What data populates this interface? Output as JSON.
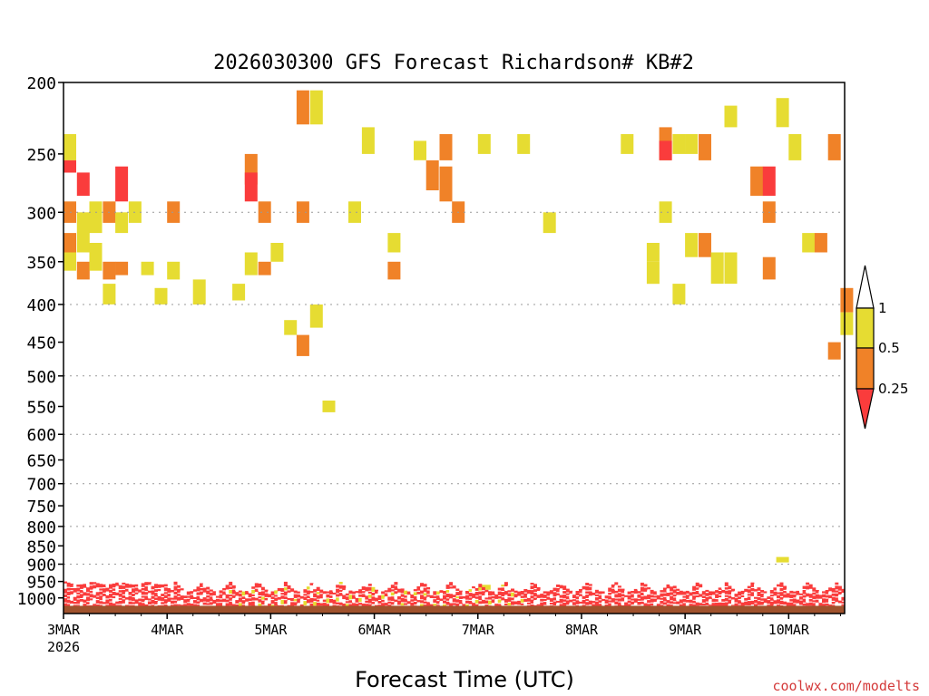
{
  "chart_data": {
    "type": "heatmap",
    "title": "2026030300 GFS Forecast Richardson# KB#2",
    "xlabel": "Forecast Time (UTC)",
    "ylabel": "",
    "credit": "coolwx.com/modelts",
    "x_ticks": [
      {
        "label": "3MAR",
        "sub": "2026",
        "day": 0
      },
      {
        "label": "4MAR",
        "day": 1
      },
      {
        "label": "5MAR",
        "day": 2
      },
      {
        "label": "6MAR",
        "day": 3
      },
      {
        "label": "7MAR",
        "day": 4
      },
      {
        "label": "8MAR",
        "day": 5
      },
      {
        "label": "9MAR",
        "day": 6
      },
      {
        "label": "10MAR",
        "day": 7
      }
    ],
    "xlim_days": [
      0,
      7.54
    ],
    "y_ticks": [
      200,
      250,
      300,
      350,
      400,
      450,
      500,
      550,
      600,
      650,
      700,
      750,
      800,
      850,
      900,
      950,
      1000
    ],
    "y_gridlines": [
      300,
      400,
      500,
      600,
      700,
      800,
      900
    ],
    "ylim": [
      200,
      1050
    ],
    "y_scale": "log",
    "grid": true,
    "legend_placement": "right",
    "color_scale": [
      {
        "label": "1",
        "value": 1,
        "color": "#ffffff",
        "range": "above 1"
      },
      {
        "label": "0.5",
        "value": 0.5,
        "color": "#e6dc32",
        "range": "0.5 - 1"
      },
      {
        "label": "0.25",
        "value": 0.25,
        "color": "#f08228",
        "range": "0.25 - 0.5"
      },
      {
        "label": "",
        "value": 0,
        "color": "#fa3c3c",
        "range": "below 0.25"
      }
    ],
    "ground_color": "#a0522d",
    "surface_p": 1030,
    "time_step_days": 0.125,
    "cells": [
      {
        "d": 0.0,
        "p1": 235,
        "p2": 255,
        "c": "y"
      },
      {
        "d": 0.0,
        "p1": 255,
        "p2": 265,
        "c": "r"
      },
      {
        "d": 0.0,
        "p1": 320,
        "p2": 340,
        "c": "o"
      },
      {
        "d": 0.0,
        "p1": 340,
        "p2": 360,
        "c": "y"
      },
      {
        "d": 0.0,
        "p1": 290,
        "p2": 310,
        "c": "o"
      },
      {
        "d": 0.13,
        "p1": 265,
        "p2": 285,
        "c": "r"
      },
      {
        "d": 0.13,
        "p1": 300,
        "p2": 340,
        "c": "y"
      },
      {
        "d": 0.13,
        "p1": 350,
        "p2": 370,
        "c": "o"
      },
      {
        "d": 0.25,
        "p1": 290,
        "p2": 320,
        "c": "y"
      },
      {
        "d": 0.25,
        "p1": 330,
        "p2": 360,
        "c": "y"
      },
      {
        "d": 0.38,
        "p1": 290,
        "p2": 310,
        "c": "o"
      },
      {
        "d": 0.38,
        "p1": 350,
        "p2": 370,
        "c": "o"
      },
      {
        "d": 0.38,
        "p1": 375,
        "p2": 400,
        "c": "y"
      },
      {
        "d": 0.5,
        "p1": 260,
        "p2": 290,
        "c": "r"
      },
      {
        "d": 0.5,
        "p1": 300,
        "p2": 320,
        "c": "y"
      },
      {
        "d": 0.5,
        "p1": 350,
        "p2": 365,
        "c": "o"
      },
      {
        "d": 0.63,
        "p1": 290,
        "p2": 310,
        "c": "y"
      },
      {
        "d": 0.75,
        "p1": 350,
        "p2": 365,
        "c": "y"
      },
      {
        "d": 0.88,
        "p1": 380,
        "p2": 400,
        "c": "y"
      },
      {
        "d": 1.0,
        "p1": 290,
        "p2": 310,
        "c": "o"
      },
      {
        "d": 1.0,
        "p1": 350,
        "p2": 370,
        "c": "y"
      },
      {
        "d": 1.25,
        "p1": 370,
        "p2": 400,
        "c": "y"
      },
      {
        "d": 1.63,
        "p1": 375,
        "p2": 395,
        "c": "y"
      },
      {
        "d": 1.75,
        "p1": 250,
        "p2": 275,
        "c": "o"
      },
      {
        "d": 1.75,
        "p1": 265,
        "p2": 290,
        "c": "r"
      },
      {
        "d": 1.75,
        "p1": 340,
        "p2": 365,
        "c": "y"
      },
      {
        "d": 1.88,
        "p1": 290,
        "p2": 310,
        "c": "o"
      },
      {
        "d": 1.88,
        "p1": 350,
        "p2": 365,
        "c": "o"
      },
      {
        "d": 2.0,
        "p1": 330,
        "p2": 350,
        "c": "y"
      },
      {
        "d": 2.13,
        "p1": 420,
        "p2": 440,
        "c": "y"
      },
      {
        "d": 2.25,
        "p1": 205,
        "p2": 228,
        "c": "o"
      },
      {
        "d": 2.25,
        "p1": 290,
        "p2": 310,
        "c": "o"
      },
      {
        "d": 2.25,
        "p1": 440,
        "p2": 470,
        "c": "o"
      },
      {
        "d": 2.38,
        "p1": 205,
        "p2": 228,
        "c": "y"
      },
      {
        "d": 2.38,
        "p1": 400,
        "p2": 430,
        "c": "y"
      },
      {
        "d": 2.5,
        "p1": 540,
        "p2": 560,
        "c": "y"
      },
      {
        "d": 2.75,
        "p1": 290,
        "p2": 310,
        "c": "y"
      },
      {
        "d": 2.88,
        "p1": 230,
        "p2": 250,
        "c": "y"
      },
      {
        "d": 3.13,
        "p1": 320,
        "p2": 340,
        "c": "y"
      },
      {
        "d": 3.13,
        "p1": 350,
        "p2": 370,
        "c": "o"
      },
      {
        "d": 3.38,
        "p1": 240,
        "p2": 255,
        "c": "y"
      },
      {
        "d": 3.5,
        "p1": 255,
        "p2": 280,
        "c": "o"
      },
      {
        "d": 3.63,
        "p1": 235,
        "p2": 255,
        "c": "o"
      },
      {
        "d": 3.63,
        "p1": 260,
        "p2": 290,
        "c": "o"
      },
      {
        "d": 3.75,
        "p1": 290,
        "p2": 310,
        "c": "o"
      },
      {
        "d": 4.0,
        "p1": 235,
        "p2": 250,
        "c": "y"
      },
      {
        "d": 4.38,
        "p1": 235,
        "p2": 250,
        "c": "y"
      },
      {
        "d": 4.0,
        "p1": 960,
        "p2": 975,
        "c": "y"
      },
      {
        "d": 4.63,
        "p1": 300,
        "p2": 320,
        "c": "y"
      },
      {
        "d": 5.38,
        "p1": 235,
        "p2": 250,
        "c": "y"
      },
      {
        "d": 5.63,
        "p1": 330,
        "p2": 350,
        "c": "y"
      },
      {
        "d": 5.63,
        "p1": 350,
        "p2": 375,
        "c": "y"
      },
      {
        "d": 5.75,
        "p1": 230,
        "p2": 255,
        "c": "o"
      },
      {
        "d": 5.75,
        "p1": 240,
        "p2": 255,
        "c": "r"
      },
      {
        "d": 5.75,
        "p1": 290,
        "p2": 310,
        "c": "y"
      },
      {
        "d": 5.88,
        "p1": 235,
        "p2": 250,
        "c": "y"
      },
      {
        "d": 5.88,
        "p1": 375,
        "p2": 400,
        "c": "y"
      },
      {
        "d": 6.0,
        "p1": 235,
        "p2": 250,
        "c": "y"
      },
      {
        "d": 6.0,
        "p1": 320,
        "p2": 345,
        "c": "y"
      },
      {
        "d": 6.13,
        "p1": 235,
        "p2": 255,
        "c": "o"
      },
      {
        "d": 6.13,
        "p1": 320,
        "p2": 345,
        "c": "o"
      },
      {
        "d": 6.25,
        "p1": 340,
        "p2": 375,
        "c": "y"
      },
      {
        "d": 6.38,
        "p1": 215,
        "p2": 230,
        "c": "y"
      },
      {
        "d": 6.38,
        "p1": 340,
        "p2": 375,
        "c": "y"
      },
      {
        "d": 6.63,
        "p1": 260,
        "p2": 285,
        "c": "o"
      },
      {
        "d": 6.75,
        "p1": 260,
        "p2": 285,
        "c": "r"
      },
      {
        "d": 6.75,
        "p1": 290,
        "p2": 310,
        "c": "o"
      },
      {
        "d": 6.75,
        "p1": 345,
        "p2": 370,
        "c": "o"
      },
      {
        "d": 6.88,
        "p1": 210,
        "p2": 230,
        "c": "y"
      },
      {
        "d": 7.0,
        "p1": 235,
        "p2": 255,
        "c": "y"
      },
      {
        "d": 7.13,
        "p1": 320,
        "p2": 340,
        "c": "y"
      },
      {
        "d": 7.25,
        "p1": 320,
        "p2": 340,
        "c": "o"
      },
      {
        "d": 7.38,
        "p1": 235,
        "p2": 255,
        "c": "o"
      },
      {
        "d": 7.38,
        "p1": 450,
        "p2": 475,
        "c": "o"
      },
      {
        "d": 7.5,
        "p1": 380,
        "p2": 410,
        "c": "o"
      },
      {
        "d": 7.5,
        "p1": 410,
        "p2": 440,
        "c": "y"
      },
      {
        "d": 6.88,
        "p1": 880,
        "p2": 895,
        "c": "y"
      }
    ],
    "boundary_layer": {
      "p_top": 950,
      "p_bottom": 1025,
      "dominant_color": "r"
    }
  }
}
